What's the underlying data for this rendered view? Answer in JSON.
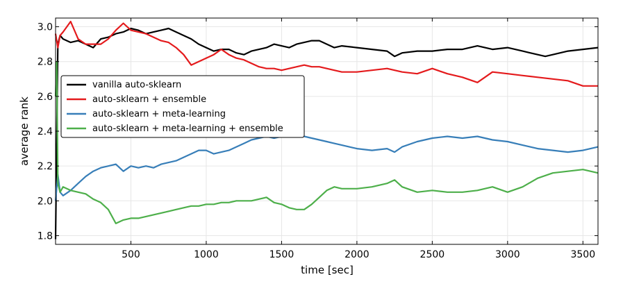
{
  "chart_data": {
    "type": "line",
    "xlabel": "time [sec]",
    "ylabel": "average rank",
    "xlim": [
      0,
      3600
    ],
    "ylim": [
      1.75,
      3.05
    ],
    "xticks": [
      500,
      1000,
      1500,
      2000,
      2500,
      3000,
      3500
    ],
    "yticks": [
      1.8,
      2.0,
      2.2,
      2.4,
      2.6,
      2.8,
      3.0
    ],
    "xtick_labels": [
      "500",
      "1000",
      "1500",
      "2000",
      "2500",
      "3000",
      "3500"
    ],
    "ytick_labels": [
      "1.8",
      "2.0",
      "2.2",
      "2.4",
      "2.6",
      "2.8",
      "3.0"
    ],
    "grid": true,
    "legend_position": "upper-left",
    "series": [
      {
        "name": "vanilla auto-sklearn",
        "color": "#000000",
        "x": [
          0,
          15,
          30,
          50,
          100,
          150,
          200,
          250,
          300,
          350,
          400,
          450,
          500,
          550,
          600,
          650,
          700,
          750,
          800,
          850,
          900,
          950,
          1000,
          1050,
          1100,
          1150,
          1200,
          1250,
          1300,
          1350,
          1400,
          1450,
          1500,
          1550,
          1600,
          1650,
          1700,
          1750,
          1800,
          1850,
          1900,
          2000,
          2100,
          2200,
          2250,
          2300,
          2400,
          2500,
          2600,
          2700,
          2800,
          2900,
          3000,
          3100,
          3200,
          3250,
          3300,
          3400,
          3500,
          3600
        ],
        "y": [
          1.78,
          2.9,
          2.95,
          2.93,
          2.91,
          2.92,
          2.9,
          2.88,
          2.93,
          2.94,
          2.96,
          2.97,
          2.99,
          2.98,
          2.96,
          2.97,
          2.98,
          2.99,
          2.97,
          2.95,
          2.93,
          2.9,
          2.88,
          2.86,
          2.87,
          2.87,
          2.85,
          2.84,
          2.86,
          2.87,
          2.88,
          2.9,
          2.89,
          2.88,
          2.9,
          2.91,
          2.92,
          2.92,
          2.9,
          2.88,
          2.89,
          2.88,
          2.87,
          2.86,
          2.83,
          2.85,
          2.86,
          2.86,
          2.87,
          2.87,
          2.89,
          2.87,
          2.88,
          2.86,
          2.84,
          2.83,
          2.84,
          2.86,
          2.87,
          2.88
        ]
      },
      {
        "name": "auto-sklearn + ensemble",
        "color": "#e41a1c",
        "x": [
          0,
          15,
          30,
          50,
          100,
          150,
          200,
          250,
          300,
          350,
          400,
          450,
          500,
          550,
          600,
          650,
          700,
          750,
          800,
          850,
          900,
          950,
          1000,
          1050,
          1100,
          1150,
          1200,
          1250,
          1300,
          1350,
          1400,
          1450,
          1500,
          1550,
          1600,
          1650,
          1700,
          1750,
          1800,
          1850,
          1900,
          2000,
          2100,
          2200,
          2250,
          2300,
          2400,
          2500,
          2600,
          2700,
          2800,
          2900,
          3000,
          3100,
          3200,
          3300,
          3400,
          3500,
          3600
        ],
        "y": [
          2.96,
          2.88,
          2.95,
          2.97,
          3.03,
          2.93,
          2.9,
          2.9,
          2.9,
          2.93,
          2.98,
          3.02,
          2.98,
          2.97,
          2.96,
          2.94,
          2.92,
          2.91,
          2.88,
          2.84,
          2.78,
          2.8,
          2.82,
          2.84,
          2.87,
          2.84,
          2.82,
          2.81,
          2.79,
          2.77,
          2.76,
          2.76,
          2.75,
          2.76,
          2.77,
          2.78,
          2.77,
          2.77,
          2.76,
          2.75,
          2.74,
          2.74,
          2.75,
          2.76,
          2.75,
          2.74,
          2.73,
          2.76,
          2.73,
          2.71,
          2.68,
          2.74,
          2.73,
          2.72,
          2.71,
          2.7,
          2.69,
          2.66,
          2.66
        ]
      },
      {
        "name": "auto-sklearn + meta-learning",
        "color": "#377eb8",
        "x": [
          0,
          15,
          30,
          50,
          100,
          150,
          200,
          250,
          300,
          350,
          400,
          450,
          500,
          550,
          600,
          650,
          700,
          750,
          800,
          850,
          900,
          950,
          1000,
          1050,
          1100,
          1150,
          1200,
          1250,
          1300,
          1350,
          1400,
          1450,
          1500,
          1550,
          1600,
          1650,
          1700,
          1750,
          1800,
          1850,
          1900,
          2000,
          2100,
          2200,
          2250,
          2300,
          2400,
          2500,
          2600,
          2700,
          2800,
          2900,
          3000,
          3100,
          3200,
          3300,
          3400,
          3500,
          3600
        ],
        "y": [
          2.0,
          2.15,
          2.05,
          2.03,
          2.06,
          2.1,
          2.14,
          2.17,
          2.19,
          2.2,
          2.21,
          2.17,
          2.2,
          2.19,
          2.2,
          2.19,
          2.21,
          2.22,
          2.23,
          2.25,
          2.27,
          2.29,
          2.29,
          2.27,
          2.28,
          2.29,
          2.31,
          2.33,
          2.35,
          2.36,
          2.37,
          2.36,
          2.37,
          2.38,
          2.39,
          2.37,
          2.36,
          2.35,
          2.34,
          2.33,
          2.32,
          2.3,
          2.29,
          2.3,
          2.28,
          2.31,
          2.34,
          2.36,
          2.37,
          2.36,
          2.37,
          2.35,
          2.34,
          2.32,
          2.3,
          2.29,
          2.28,
          2.29,
          2.31
        ]
      },
      {
        "name": "auto-sklearn + meta-learning + ensemble",
        "color": "#4daf4a",
        "x": [
          0,
          8,
          15,
          30,
          50,
          100,
          150,
          200,
          250,
          300,
          350,
          400,
          450,
          500,
          550,
          600,
          650,
          700,
          750,
          800,
          850,
          900,
          950,
          1000,
          1050,
          1100,
          1150,
          1200,
          1250,
          1300,
          1350,
          1400,
          1450,
          1500,
          1550,
          1600,
          1650,
          1700,
          1750,
          1800,
          1850,
          1900,
          2000,
          2100,
          2200,
          2250,
          2300,
          2400,
          2500,
          2600,
          2700,
          2800,
          2900,
          3000,
          3100,
          3200,
          3300,
          3400,
          3500,
          3600
        ],
        "y": [
          2.6,
          2.8,
          2.1,
          2.05,
          2.08,
          2.06,
          2.05,
          2.04,
          2.01,
          1.99,
          1.95,
          1.87,
          1.89,
          1.9,
          1.9,
          1.91,
          1.92,
          1.93,
          1.94,
          1.95,
          1.96,
          1.97,
          1.97,
          1.98,
          1.98,
          1.99,
          1.99,
          2.0,
          2.0,
          2.0,
          2.01,
          2.02,
          1.99,
          1.98,
          1.96,
          1.95,
          1.95,
          1.98,
          2.02,
          2.06,
          2.08,
          2.07,
          2.07,
          2.08,
          2.1,
          2.12,
          2.08,
          2.05,
          2.06,
          2.05,
          2.05,
          2.06,
          2.08,
          2.05,
          2.08,
          2.13,
          2.16,
          2.17,
          2.18,
          2.16
        ]
      }
    ]
  }
}
